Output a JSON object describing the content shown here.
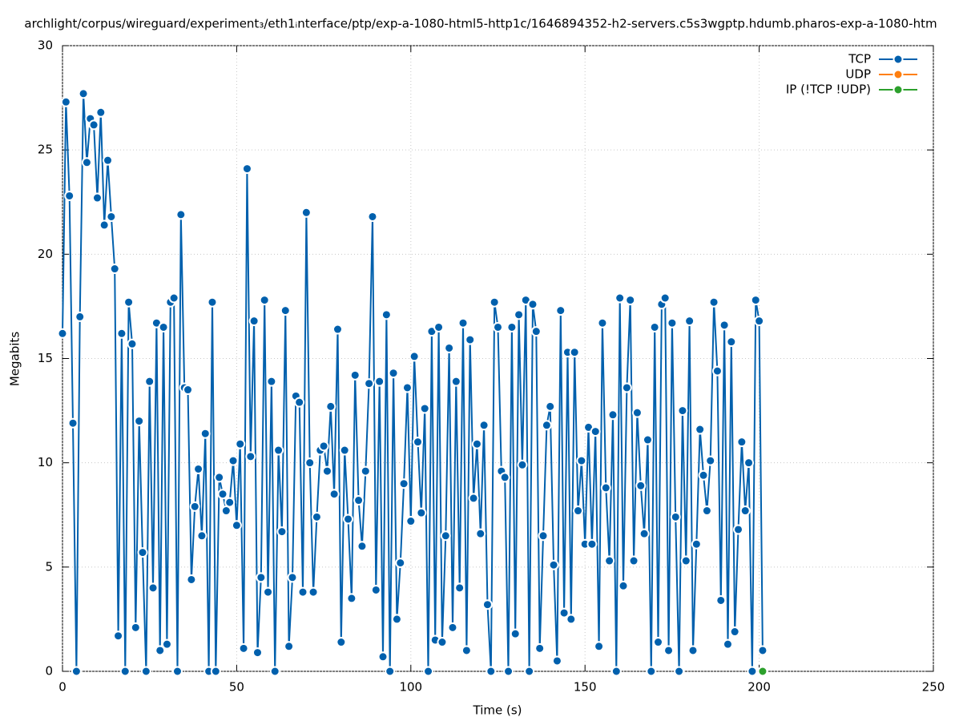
{
  "chart_data": {
    "type": "line",
    "title": "archlight/corpus/wireguard/experiment₃/eth1ᵢnterface/ptp/exp-a-1080-html5-http1c/1646894352-h2-servers.c5s3wgptp.hdumb.pharos-exp-a-1080-htm",
    "xlabel": "Time (s)",
    "ylabel": "Megabits",
    "xlim": [
      0,
      250
    ],
    "xticks": [
      0,
      50,
      100,
      150,
      200,
      250
    ],
    "ylim": [
      0,
      30
    ],
    "yticks": [
      0,
      5,
      10,
      15,
      20,
      25,
      30
    ],
    "grid": true,
    "legend": "top-right",
    "series": [
      {
        "name": "TCP",
        "color": "#0060ad",
        "x": [
          0,
          1,
          2,
          3,
          4,
          5,
          6,
          7,
          8,
          9,
          10,
          11,
          12,
          13,
          14,
          15,
          16,
          17,
          18,
          19,
          20,
          21,
          22,
          23,
          24,
          25,
          26,
          27,
          28,
          29,
          30,
          31,
          32,
          33,
          34,
          35,
          36,
          37,
          38,
          39,
          40,
          41,
          42,
          43,
          44,
          45,
          46,
          47,
          48,
          49,
          50,
          51,
          52,
          53,
          54,
          55,
          56,
          57,
          58,
          59,
          60,
          61,
          62,
          63,
          64,
          65,
          66,
          67,
          68,
          69,
          70,
          71,
          72,
          73,
          74,
          75,
          76,
          77,
          78,
          79,
          80,
          81,
          82,
          83,
          84,
          85,
          86,
          87,
          88,
          89,
          90,
          91,
          92,
          93,
          94,
          95,
          96,
          97,
          98,
          99,
          100,
          101,
          102,
          103,
          104,
          105,
          106,
          107,
          108,
          109,
          110,
          111,
          112,
          113,
          114,
          115,
          116,
          117,
          118,
          119,
          120,
          121,
          122,
          123,
          124,
          125,
          126,
          127,
          128,
          129,
          130,
          131,
          132,
          133,
          134,
          135,
          136,
          137,
          138,
          139,
          140,
          141,
          142,
          143,
          144,
          145,
          146,
          147,
          148,
          149,
          150,
          151,
          152,
          153,
          154,
          155,
          156,
          157,
          158,
          159,
          160,
          161,
          162,
          163,
          164,
          165,
          166,
          167,
          168,
          169,
          170,
          171,
          172,
          173,
          174,
          175,
          176,
          177,
          178,
          179,
          180,
          181,
          182,
          183,
          184,
          185,
          186,
          187,
          188,
          189,
          190,
          191,
          192,
          193,
          194,
          195,
          196,
          197,
          198,
          199,
          200,
          201
        ],
        "values": [
          16.2,
          27.3,
          22.8,
          11.9,
          0,
          17.0,
          27.7,
          24.4,
          26.5,
          26.2,
          22.7,
          26.8,
          21.4,
          24.5,
          21.8,
          19.3,
          1.7,
          16.2,
          0,
          17.7,
          15.7,
          2.1,
          12.0,
          5.7,
          0,
          13.9,
          4.0,
          16.7,
          1.0,
          16.5,
          1.3,
          17.7,
          17.9,
          0,
          21.9,
          13.6,
          13.5,
          4.4,
          7.9,
          9.7,
          6.5,
          11.4,
          0,
          17.7,
          0,
          9.3,
          8.5,
          7.7,
          8.1,
          10.1,
          7.0,
          10.9,
          1.1,
          24.1,
          10.3,
          16.8,
          0.9,
          4.5,
          17.8,
          3.8,
          13.9,
          0,
          10.6,
          6.7,
          17.3,
          1.2,
          4.5,
          13.2,
          12.9,
          3.8,
          22.0,
          10.0,
          3.8,
          7.4,
          10.6,
          10.8,
          9.6,
          12.7,
          8.5,
          16.4,
          1.4,
          10.6,
          7.3,
          3.5,
          14.2,
          8.2,
          6.0,
          9.6,
          13.8,
          21.8,
          3.9,
          13.9,
          0.7,
          17.1,
          0,
          14.3,
          2.5,
          5.2,
          9.0,
          13.6,
          7.2,
          15.1,
          11.0,
          7.6,
          12.6,
          0,
          16.3,
          1.5,
          16.5,
          1.4,
          6.5,
          15.5,
          2.1,
          13.9,
          4.0,
          16.7,
          1.0,
          15.9,
          8.3,
          10.9,
          6.6,
          11.8,
          3.2,
          0,
          17.7,
          16.5,
          9.6,
          9.3,
          0,
          16.5,
          1.8,
          17.1,
          9.9,
          17.8,
          0,
          17.6,
          16.3,
          1.1,
          6.5,
          11.8,
          12.7,
          5.1,
          0.5,
          17.3,
          2.8,
          15.3,
          2.5,
          15.3,
          7.7,
          10.1,
          6.1,
          11.7,
          6.1,
          11.5,
          1.2,
          16.7,
          8.8,
          5.3,
          12.3,
          0,
          17.9,
          4.1,
          13.6,
          17.8,
          5.3,
          12.4,
          8.9,
          6.6,
          11.1,
          0,
          16.5,
          1.4,
          17.6,
          17.9,
          1.0,
          16.7,
          7.4,
          0,
          12.5,
          5.3,
          16.8,
          1.0,
          6.1,
          11.6,
          9.4,
          7.7,
          10.1,
          17.7,
          14.4,
          3.4,
          16.6,
          1.3,
          15.8,
          1.9,
          6.8,
          11.0,
          7.7,
          10.0,
          0,
          17.8,
          16.8,
          1.0
        ]
      },
      {
        "name": "UDP",
        "color": "#ff7f0e",
        "x": [],
        "values": []
      },
      {
        "name": "IP (!TCP  !UDP)",
        "color": "#2ca02c",
        "x": [
          201
        ],
        "values": [
          0
        ]
      }
    ]
  }
}
